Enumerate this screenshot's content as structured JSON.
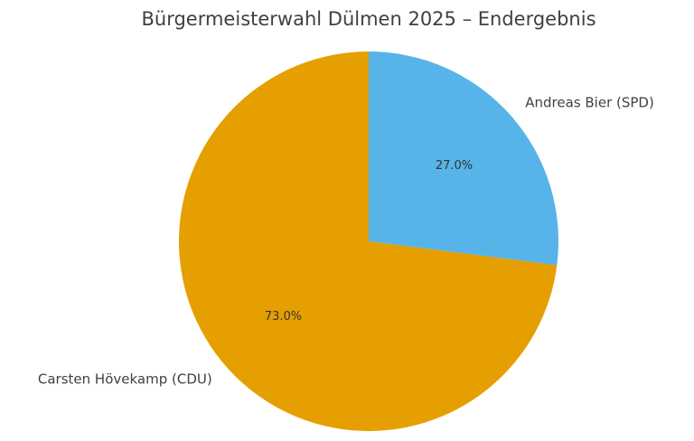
{
  "chart_data": {
    "type": "pie",
    "title": "Bürgermeisterwahl Dülmen 2025 – Endergebnis",
    "categories": [
      "Carsten Hövekamp (CDU)",
      "Andreas Bier (SPD)"
    ],
    "values": [
      73.0,
      27.0
    ],
    "value_labels": [
      "73.0%",
      "27.0%"
    ],
    "colors": [
      "#E69F00",
      "#56B4E9"
    ]
  }
}
